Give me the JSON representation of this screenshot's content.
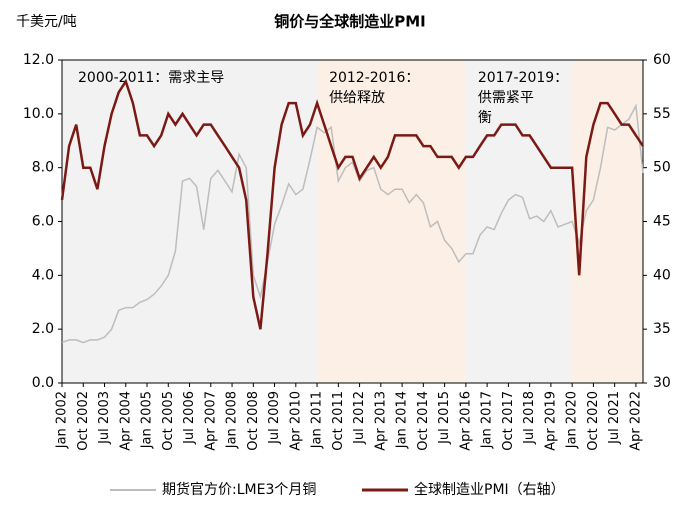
{
  "chart_data": {
    "type": "line",
    "title": "铜价与全球制造业PMI",
    "y_label": "千美元/吨",
    "x": [
      "2002-01",
      "2002-04",
      "2002-07",
      "2002-10",
      "2003-01",
      "2003-04",
      "2003-07",
      "2003-10",
      "2004-01",
      "2004-04",
      "2004-07",
      "2004-10",
      "2005-01",
      "2005-04",
      "2005-07",
      "2005-10",
      "2006-01",
      "2006-04",
      "2006-07",
      "2006-10",
      "2007-01",
      "2007-04",
      "2007-07",
      "2007-10",
      "2008-01",
      "2008-04",
      "2008-07",
      "2008-10",
      "2009-01",
      "2009-04",
      "2009-07",
      "2009-10",
      "2010-01",
      "2010-04",
      "2010-07",
      "2010-10",
      "2011-01",
      "2011-04",
      "2011-07",
      "2011-10",
      "2012-01",
      "2012-04",
      "2012-07",
      "2012-10",
      "2013-01",
      "2013-04",
      "2013-07",
      "2013-10",
      "2014-01",
      "2014-04",
      "2014-07",
      "2014-10",
      "2015-01",
      "2015-04",
      "2015-07",
      "2015-10",
      "2016-01",
      "2016-04",
      "2016-07",
      "2016-10",
      "2017-01",
      "2017-04",
      "2017-07",
      "2017-10",
      "2018-01",
      "2018-04",
      "2018-07",
      "2018-10",
      "2019-01",
      "2019-04",
      "2019-07",
      "2019-10",
      "2020-01",
      "2020-04",
      "2020-07",
      "2020-10",
      "2021-01",
      "2021-04",
      "2021-07",
      "2021-10",
      "2022-01",
      "2022-04",
      "2022-07"
    ],
    "series": [
      {
        "name": "期货官方价:LME3个月铜",
        "color": "#bdbdbd",
        "axis": "y",
        "values": [
          1.5,
          1.6,
          1.6,
          1.5,
          1.6,
          1.6,
          1.7,
          2.0,
          2.7,
          2.8,
          2.8,
          3.0,
          3.1,
          3.3,
          3.6,
          4.0,
          4.9,
          7.5,
          7.6,
          7.3,
          5.7,
          7.6,
          7.9,
          7.5,
          7.1,
          8.5,
          8.0,
          4.0,
          3.2,
          4.5,
          5.9,
          6.6,
          7.4,
          7.0,
          7.2,
          8.3,
          9.5,
          9.3,
          9.5,
          7.5,
          8.0,
          8.2,
          7.5,
          7.9,
          8.0,
          7.2,
          7.0,
          7.2,
          7.2,
          6.7,
          7.0,
          6.7,
          5.8,
          6.0,
          5.3,
          5.0,
          4.5,
          4.8,
          4.8,
          5.5,
          5.8,
          5.7,
          6.3,
          6.8,
          7.0,
          6.9,
          6.1,
          6.2,
          6.0,
          6.4,
          5.8,
          5.9,
          6.0,
          5.2,
          6.4,
          6.8,
          8.0,
          9.5,
          9.4,
          9.6,
          9.8,
          10.3,
          7.8
        ]
      },
      {
        "name": "全球制造业PMI（右轴）",
        "color": "#7b1a14",
        "axis": "y2",
        "values": [
          47,
          52,
          54,
          50,
          50,
          48,
          52,
          55,
          57,
          58,
          56,
          53,
          53,
          52,
          53,
          55,
          54,
          55,
          54,
          53,
          54,
          54,
          53,
          52,
          51,
          50,
          47,
          38,
          35,
          42,
          50,
          54,
          56,
          56,
          53,
          54,
          56,
          54,
          52,
          50,
          51,
          51,
          49,
          50,
          51,
          50,
          51,
          53,
          53,
          53,
          53,
          52,
          52,
          51,
          51,
          51,
          50,
          51,
          51,
          52,
          53,
          53,
          54,
          54,
          54,
          53,
          53,
          52,
          51,
          50,
          50,
          50,
          50,
          40,
          51,
          54,
          56,
          56,
          55,
          54,
          54,
          53,
          52
        ]
      }
    ],
    "xlim": [
      "2002-01",
      "2022-07"
    ],
    "xticks": [
      {
        "value": "2002-01",
        "label": "Jan 2002"
      },
      {
        "value": "2002-10",
        "label": "Oct 2002"
      },
      {
        "value": "2003-07",
        "label": "Jul 2003"
      },
      {
        "value": "2004-04",
        "label": "Apr 2004"
      },
      {
        "value": "2005-01",
        "label": "Jan 2005"
      },
      {
        "value": "2005-10",
        "label": "Oct 2005"
      },
      {
        "value": "2006-07",
        "label": "Jul 2006"
      },
      {
        "value": "2007-04",
        "label": "Apr 2007"
      },
      {
        "value": "2008-01",
        "label": "Jan 2008"
      },
      {
        "value": "2008-10",
        "label": "Oct 2008"
      },
      {
        "value": "2009-07",
        "label": "Jul 2009"
      },
      {
        "value": "2010-04",
        "label": "Apr 2010"
      },
      {
        "value": "2011-01",
        "label": "Jan 2011"
      },
      {
        "value": "2011-10",
        "label": "Oct 2011"
      },
      {
        "value": "2012-07",
        "label": "Jul 2012"
      },
      {
        "value": "2013-04",
        "label": "Apr 2013"
      },
      {
        "value": "2014-01",
        "label": "Jan 2014"
      },
      {
        "value": "2014-10",
        "label": "Oct 2014"
      },
      {
        "value": "2015-07",
        "label": "Jul 2015"
      },
      {
        "value": "2016-04",
        "label": "Apr 2016"
      },
      {
        "value": "2017-01",
        "label": "Jan 2017"
      },
      {
        "value": "2017-10",
        "label": "Oct 2017"
      },
      {
        "value": "2018-07",
        "label": "Jul 2018"
      },
      {
        "value": "2019-04",
        "label": "Apr 2019"
      },
      {
        "value": "2020-01",
        "label": "Jan 2020"
      },
      {
        "value": "2020-10",
        "label": "Oct 2020"
      },
      {
        "value": "2021-07",
        "label": "Jul 2021"
      },
      {
        "value": "2022-04",
        "label": "Apr 2022"
      }
    ],
    "ylim": [
      0,
      12
    ],
    "yticks": [
      {
        "value": 0,
        "label": "0.0"
      },
      {
        "value": 2,
        "label": "2.0"
      },
      {
        "value": 4,
        "label": "4.0"
      },
      {
        "value": 6,
        "label": "6.0"
      },
      {
        "value": 8,
        "label": "8.0"
      },
      {
        "value": 10,
        "label": "10.0"
      },
      {
        "value": 12,
        "label": "12.0"
      }
    ],
    "y2lim": [
      30,
      60
    ],
    "y2ticks": [
      30,
      35,
      40,
      45,
      50,
      55,
      60
    ],
    "regions": [
      {
        "start": "2002-01",
        "end": "2011-01",
        "color": "#f2f2f2",
        "label": [
          "2000-2011：需求主导"
        ]
      },
      {
        "start": "2011-01",
        "end": "2016-04",
        "color": "#fcefe6",
        "label": [
          "2012-2016：",
          "供给释放"
        ]
      },
      {
        "start": "2016-04",
        "end": "2020-01",
        "color": "#f2f2f2",
        "label": [
          "2017-2019：",
          "供需紧平",
          "衡"
        ]
      },
      {
        "start": "2020-01",
        "end": "2022-07",
        "color": "#fcefe6"
      }
    ]
  }
}
